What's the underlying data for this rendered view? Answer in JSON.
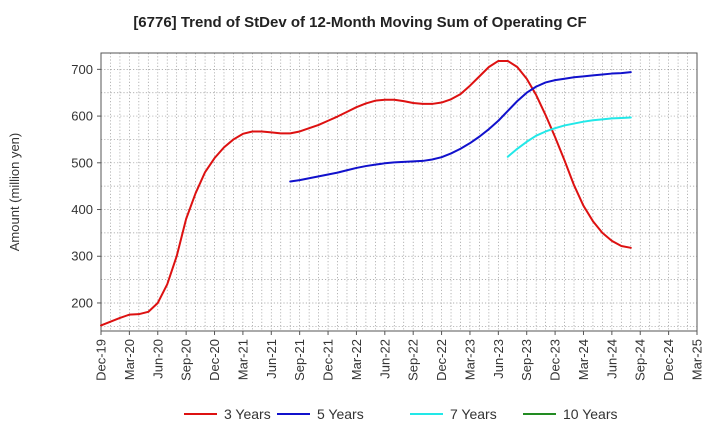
{
  "chart_data": {
    "type": "line",
    "title": "[6776]  Trend of StDev of 12-Month Moving Sum of Operating CF",
    "xlabel": "",
    "ylabel": "Amount (million yen)",
    "ylim": [
      140,
      735
    ],
    "yticks": [
      200,
      300,
      400,
      500,
      600,
      700
    ],
    "x_tick_labels": [
      "Dec-19",
      "Mar-20",
      "Jun-20",
      "Sep-20",
      "Dec-20",
      "Mar-21",
      "Jun-21",
      "Sep-21",
      "Dec-21",
      "Mar-22",
      "Jun-22",
      "Sep-22",
      "Dec-22",
      "Mar-23",
      "Jun-23",
      "Sep-23",
      "Dec-23",
      "Mar-24",
      "Jun-24",
      "Sep-24",
      "Dec-24",
      "Mar-25"
    ],
    "grid": true,
    "legend_position": "bottom",
    "series": [
      {
        "name": "3 Years",
        "color": "#dd1111",
        "values": [
          152,
          160,
          168,
          175,
          176,
          181,
          200,
          240,
          300,
          380,
          435,
          480,
          510,
          533,
          550,
          562,
          567,
          567,
          565,
          563,
          563,
          567,
          574,
          581,
          590,
          599,
          609,
          619,
          627,
          633,
          635,
          635,
          632,
          628,
          626,
          626,
          629,
          636,
          647,
          665,
          685,
          705,
          718,
          718,
          705,
          680,
          645,
          602,
          555,
          505,
          452,
          408,
          375,
          350,
          333,
          322,
          318
        ]
      },
      {
        "name": "5 Years",
        "color": "#1111cc",
        "values": [
          null,
          null,
          null,
          null,
          null,
          null,
          null,
          null,
          null,
          null,
          null,
          null,
          null,
          null,
          null,
          null,
          null,
          null,
          null,
          null,
          460,
          463,
          467,
          471,
          475,
          479,
          484,
          489,
          493,
          496,
          499,
          501,
          502,
          503,
          504,
          507,
          512,
          520,
          530,
          542,
          556,
          572,
          590,
          611,
          632,
          650,
          663,
          672,
          677,
          680,
          683,
          685,
          687,
          689,
          691,
          692,
          694
        ]
      },
      {
        "name": "7 Years",
        "color": "#22e8e8",
        "values": [
          null,
          null,
          null,
          null,
          null,
          null,
          null,
          null,
          null,
          null,
          null,
          null,
          null,
          null,
          null,
          null,
          null,
          null,
          null,
          null,
          null,
          null,
          null,
          null,
          null,
          null,
          null,
          null,
          null,
          null,
          null,
          null,
          null,
          null,
          null,
          null,
          null,
          null,
          null,
          null,
          null,
          null,
          null,
          513,
          530,
          545,
          558,
          567,
          574,
          580,
          584,
          588,
          591,
          593,
          595,
          596,
          597
        ]
      },
      {
        "name": "10 Years",
        "color": "#228b22",
        "values": []
      }
    ]
  }
}
